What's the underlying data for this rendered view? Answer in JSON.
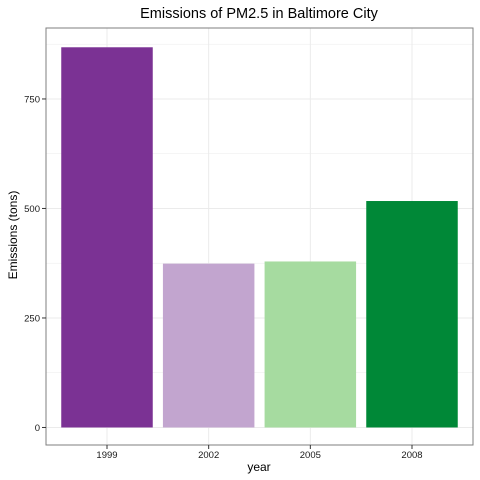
{
  "chart_data": {
    "type": "bar",
    "title": "Emissions of PM2.5 in Baltimore City",
    "xlabel": "year",
    "ylabel": "Emissions (tons)",
    "categories": [
      "1999",
      "2002",
      "2005",
      "2008"
    ],
    "values": [
      868,
      374,
      379,
      517
    ],
    "bar_colors": [
      "#7b3294",
      "#c2a5cf",
      "#a6dba0",
      "#008837"
    ],
    "ylim": [
      -40,
      912
    ],
    "yticks": [
      0,
      250,
      500,
      750
    ],
    "grid": true,
    "legend": "none",
    "panel_border_color": "#7f7f7f",
    "grid_color": "#ebebeb"
  }
}
